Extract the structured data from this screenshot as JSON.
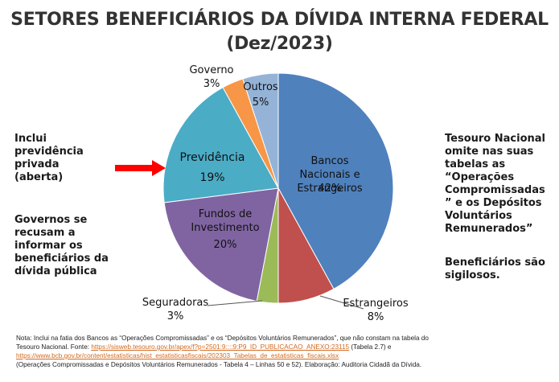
{
  "title": {
    "line1": "SETORES BENEFICIÁRIOS DA DÍVIDA INTERNA FEDERAL",
    "line2": "(Dez/2023)"
  },
  "chart_data": {
    "type": "pie",
    "title": "SETORES BENEFICIÁRIOS DA DÍVIDA INTERNA FEDERAL (Dez/2023)",
    "slices": [
      {
        "label": "Bancos Nacionais e Estrangeiros",
        "value": 42,
        "display": "42%",
        "color": "#4f81bd"
      },
      {
        "label": "Estrangeiros",
        "value": 8,
        "display": "8%",
        "color": "#c0504d"
      },
      {
        "label": "Seguradoras",
        "value": 3,
        "display": "3%",
        "color": "#9bbb59"
      },
      {
        "label": "Fundos de Investimento",
        "value": 20,
        "display": "20%",
        "color": "#8064a2"
      },
      {
        "label": "Previdência",
        "value": 19,
        "display": "19%",
        "color": "#4bacc6"
      },
      {
        "label": "Governo",
        "value": 3,
        "display": "3%",
        "color": "#f79646"
      },
      {
        "label": "Outros",
        "value": 5,
        "display": "5%",
        "color": "#95b3d7"
      }
    ],
    "start_direction": "12 o'clock, clockwise"
  },
  "annotations": {
    "left_top": [
      "Inclui",
      "previdência",
      "privada (aberta)"
    ],
    "left_bottom": [
      "Governos se",
      "recusam a",
      "informar os",
      "beneficiários da",
      "dívida pública"
    ],
    "right_top": [
      "Tesouro Nacional",
      "omite nas suas",
      "tabelas as",
      "“Operações",
      "Compromissadas",
      "” e os Depósitos",
      "Voluntários",
      "Remunerados”"
    ],
    "right_bottom": [
      "Beneficiários são",
      "sigilosos."
    ],
    "arrow_color": "#ff0000"
  },
  "footnote": {
    "text1": "Nota: Inclui na fatia dos Bancos as “Operações Compromissadas” e os “Depósitos Voluntários Remunerados”, que não constam na tabela do",
    "text2": "Tesouro Nacional. Fonte:",
    "link1": "https://sisweb.tesouro.gov.br/apex/f?p=2501:9::::9:P9_ID_PUBLICACAO_ANEXO:23115",
    "text3": "(Tabela 2.7) e",
    "link2": "https://www.bcb.gov.br/content/estatisticas/hist_estatisticasfiscais/202303_Tabelas_de_estatisticas_fiscais.xlsx",
    "text4": "(Operações Compromissadas e Depósitos Voluntários Remunerados - Tabela 4 – Linhas 50 e 52). Elaboração: Auditoria Cidadã da Dívida."
  }
}
